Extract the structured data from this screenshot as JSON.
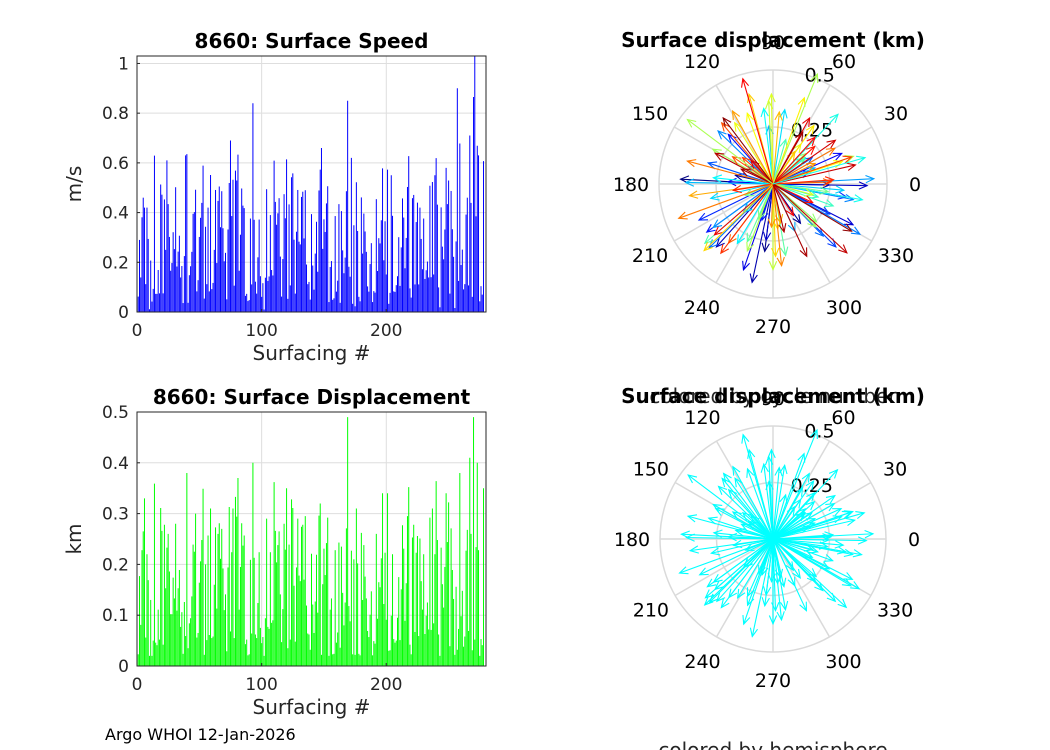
{
  "footer": "Argo WHOI 12-Jan-2026",
  "chart_data": [
    {
      "type": "bar",
      "title": "8660: Surface Speed",
      "xlabel": "Surfacing #",
      "ylabel": "m/s",
      "xlim": [
        0,
        280
      ],
      "ylim": [
        0,
        1.03
      ],
      "xticks": [
        0,
        100,
        200
      ],
      "yticks": [
        0,
        0.2,
        0.4,
        0.6,
        0.8,
        1
      ],
      "ytick_labels": [
        "0",
        "0.2",
        "0.4",
        "0.6",
        "0.8",
        "1"
      ],
      "grid": true,
      "color": "#0000ff",
      "n_points": 278,
      "values": []
    },
    {
      "type": "bar",
      "title": "8660: Surface Displacement",
      "xlabel": "Surfacing #",
      "ylabel": "km",
      "xlim": [
        0,
        280
      ],
      "ylim": [
        0,
        0.5
      ],
      "xticks": [
        0,
        100,
        200
      ],
      "yticks": [
        0,
        0.1,
        0.2,
        0.3,
        0.4,
        0.5
      ],
      "ytick_labels": [
        "0",
        "0.1",
        "0.2",
        "0.3",
        "0.4",
        "0.5"
      ],
      "grid": true,
      "color": "#00ff00",
      "n_points": 278,
      "values": []
    },
    {
      "type": "polar-compass",
      "title": "Surface displacement (km)",
      "subtitle": "colored by cycle number",
      "rmax": 0.5,
      "rticks": [
        0.25,
        0.5
      ],
      "rtick_labels": [
        "0.25",
        "0.5"
      ],
      "angle_labels": [
        "0",
        "30",
        "60",
        "90",
        "120",
        "150",
        "180",
        "210",
        "240",
        "270",
        "300",
        "330"
      ],
      "colormap": "jet",
      "vectors": []
    },
    {
      "type": "polar-compass",
      "title": "Surface displacement (km)",
      "subtitle": "colored by hemisphere",
      "rmax": 0.5,
      "rticks": [
        0.25,
        0.5
      ],
      "rtick_labels": [
        "0.25",
        "0.5"
      ],
      "angle_labels": [
        "0",
        "30",
        "60",
        "90",
        "120",
        "150",
        "180",
        "210",
        "240",
        "270",
        "300",
        "330"
      ],
      "color": "#00ffff",
      "vectors": []
    }
  ]
}
